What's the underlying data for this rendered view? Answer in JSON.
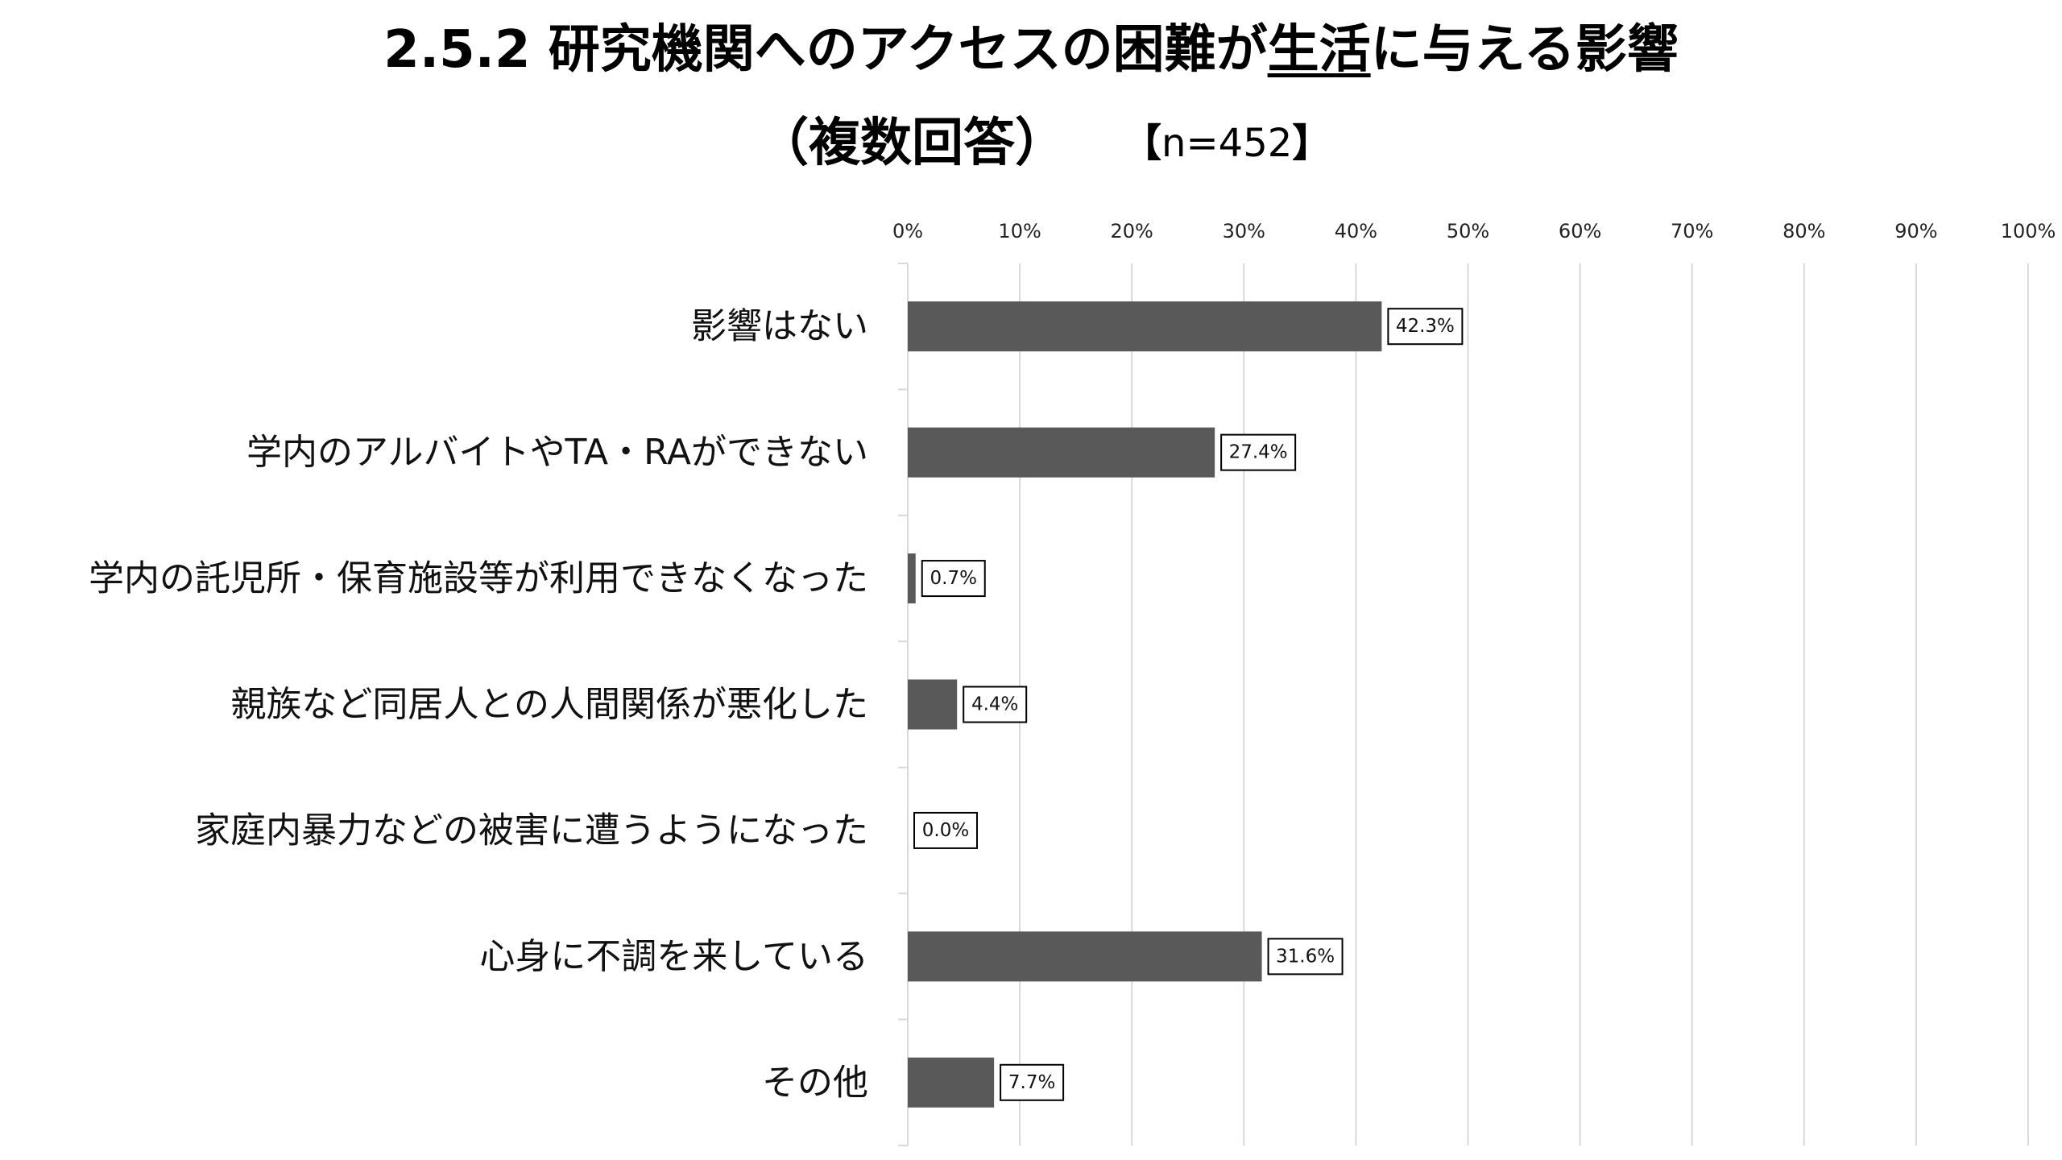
{
  "header": {
    "title_part1": "2.5.2 研究機関へのアクセスの困難が",
    "title_part2": "生活",
    "title_part3": "に与える影響",
    "subtitle": "（複数回答）",
    "n_open": "【",
    "n_text": "n=452",
    "n_close": "】"
  },
  "chart_data": {
    "type": "bar",
    "orientation": "horizontal",
    "categories": [
      "影響はない",
      "学内のアルバイトやTA・RAができない",
      "学内の託児所・保育施設等が利用できなくなった",
      "親族など同居人との人間関係が悪化した",
      "家庭内暴力などの被害に遭うようになった",
      "心身に不調を来している",
      "その他"
    ],
    "values": [
      42.3,
      27.4,
      0.7,
      4.4,
      0.0,
      31.6,
      7.7
    ],
    "data_labels": [
      "42.3%",
      "27.4%",
      "0.7%",
      "4.4%",
      "0.0%",
      "31.6%",
      "7.7%"
    ],
    "xlim": [
      0,
      100
    ],
    "ticks": [
      "0%",
      "10%",
      "20%",
      "30%",
      "40%",
      "50%",
      "60%",
      "70%",
      "80%",
      "90%",
      "100%"
    ],
    "axis_position": "top",
    "grid": true,
    "legend": "none",
    "bar_color": "#595959",
    "grid_color": "#d9d9d9"
  }
}
